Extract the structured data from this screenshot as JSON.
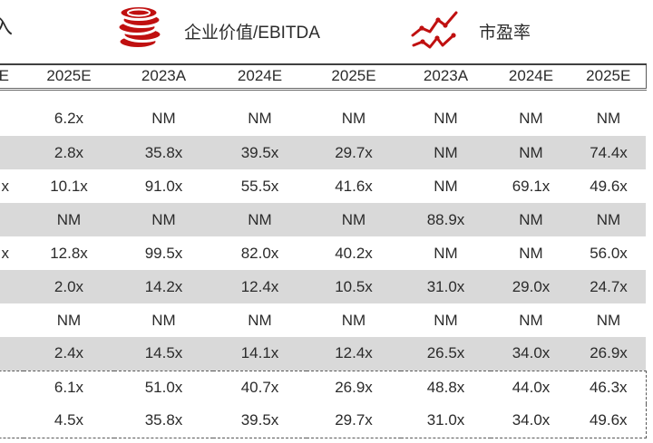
{
  "accent_color": "#C01010",
  "stripe_color": "#D9D9D9",
  "legend": {
    "partial_label": "入",
    "items": [
      {
        "icon": "coins-icon",
        "label": "企业价值/EBITDA"
      },
      {
        "icon": "line-chart-icon",
        "label": "市盈率"
      }
    ]
  },
  "table": {
    "columns": [
      "E",
      "2025E",
      "2023A",
      "2024E",
      "2025E",
      "2023A",
      "2024E",
      "2025E"
    ],
    "rows": [
      {
        "striped": false,
        "cells": [
          "",
          "6.2x",
          "NM",
          "NM",
          "NM",
          "NM",
          "NM",
          "NM"
        ]
      },
      {
        "striped": true,
        "cells": [
          "",
          "2.8x",
          "35.8x",
          "39.5x",
          "29.7x",
          "NM",
          "NM",
          "74.4x"
        ]
      },
      {
        "striped": false,
        "cells": [
          "x",
          "10.1x",
          "91.0x",
          "55.5x",
          "41.6x",
          "NM",
          "69.1x",
          "49.6x"
        ]
      },
      {
        "striped": true,
        "cells": [
          "",
          "NM",
          "NM",
          "NM",
          "NM",
          "88.9x",
          "NM",
          "NM"
        ]
      },
      {
        "striped": false,
        "cells": [
          "x",
          "12.8x",
          "99.5x",
          "82.0x",
          "40.2x",
          "NM",
          "NM",
          "56.0x"
        ]
      },
      {
        "striped": true,
        "cells": [
          "",
          "2.0x",
          "14.2x",
          "12.4x",
          "10.5x",
          "31.0x",
          "29.0x",
          "24.7x"
        ]
      },
      {
        "striped": false,
        "cells": [
          "",
          "NM",
          "NM",
          "NM",
          "NM",
          "NM",
          "NM",
          "NM"
        ]
      },
      {
        "striped": true,
        "cells": [
          "",
          "2.4x",
          "14.5x",
          "14.1x",
          "12.4x",
          "26.5x",
          "34.0x",
          "26.9x"
        ]
      }
    ],
    "summary_rows": [
      {
        "cells": [
          "",
          "6.1x",
          "51.0x",
          "40.7x",
          "26.9x",
          "48.8x",
          "44.0x",
          "46.3x"
        ]
      },
      {
        "cells": [
          "",
          "4.5x",
          "35.8x",
          "39.5x",
          "29.7x",
          "31.0x",
          "34.0x",
          "49.6x"
        ]
      }
    ]
  }
}
